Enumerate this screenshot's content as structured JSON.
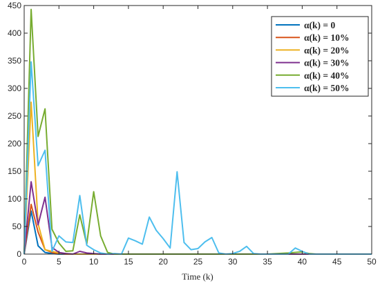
{
  "chart_data": {
    "type": "line",
    "xlabel": "Time (k)",
    "xlim": [
      0,
      50
    ],
    "ylim": [
      0,
      450
    ],
    "xticks": [
      0,
      5,
      10,
      15,
      20,
      25,
      30,
      35,
      40,
      45,
      50
    ],
    "yticks": [
      0,
      50,
      100,
      150,
      200,
      250,
      300,
      350,
      400,
      450
    ],
    "grid": false,
    "legend_position": "top-right",
    "series": [
      {
        "name": "α(k) = 0",
        "color": "#0072BD",
        "points": [
          [
            0,
            0
          ],
          [
            1,
            78
          ],
          [
            2,
            15
          ],
          [
            3,
            3
          ],
          [
            4,
            1
          ],
          [
            5,
            0
          ],
          [
            50,
            0
          ]
        ]
      },
      {
        "name": "α(k) = 10%",
        "color": "#D95319",
        "points": [
          [
            0,
            0
          ],
          [
            1,
            90
          ],
          [
            2,
            40
          ],
          [
            3,
            8
          ],
          [
            4,
            3
          ],
          [
            5,
            1
          ],
          [
            6,
            0
          ],
          [
            50,
            0
          ]
        ]
      },
      {
        "name": "α(k) = 20%",
        "color": "#EDB120",
        "points": [
          [
            0,
            0
          ],
          [
            1,
            275
          ],
          [
            2,
            55
          ],
          [
            3,
            8
          ],
          [
            4,
            5
          ],
          [
            5,
            2
          ],
          [
            6,
            1
          ],
          [
            7,
            0
          ],
          [
            50,
            0
          ]
        ]
      },
      {
        "name": "α(k) = 30%",
        "color": "#7E2F8E",
        "points": [
          [
            0,
            0
          ],
          [
            1,
            131
          ],
          [
            2,
            53
          ],
          [
            3,
            103
          ],
          [
            4,
            12
          ],
          [
            5,
            3
          ],
          [
            6,
            1
          ],
          [
            7,
            0
          ],
          [
            8,
            5
          ],
          [
            9,
            2
          ],
          [
            10,
            1
          ],
          [
            11,
            0
          ],
          [
            50,
            0
          ]
        ]
      },
      {
        "name": "α(k) = 40%",
        "color": "#77AC30",
        "points": [
          [
            0,
            0
          ],
          [
            1,
            443
          ],
          [
            2,
            213
          ],
          [
            3,
            263
          ],
          [
            4,
            45
          ],
          [
            5,
            20
          ],
          [
            6,
            5
          ],
          [
            7,
            6
          ],
          [
            8,
            71
          ],
          [
            9,
            18
          ],
          [
            10,
            113
          ],
          [
            11,
            33
          ],
          [
            12,
            3
          ],
          [
            13,
            0
          ],
          [
            35,
            0
          ],
          [
            38,
            2
          ],
          [
            40,
            4
          ],
          [
            41,
            1
          ],
          [
            42,
            0
          ],
          [
            50,
            0
          ]
        ]
      },
      {
        "name": "α(k) = 50%",
        "color": "#4DBEEE",
        "points": [
          [
            0,
            0
          ],
          [
            1,
            348
          ],
          [
            2,
            160
          ],
          [
            3,
            188
          ],
          [
            4,
            5
          ],
          [
            5,
            33
          ],
          [
            6,
            22
          ],
          [
            7,
            21
          ],
          [
            8,
            106
          ],
          [
            9,
            16
          ],
          [
            10,
            8
          ],
          [
            11,
            2
          ],
          [
            12,
            0
          ],
          [
            13,
            1
          ],
          [
            14,
            0
          ],
          [
            15,
            29
          ],
          [
            16,
            24
          ],
          [
            17,
            18
          ],
          [
            18,
            67
          ],
          [
            19,
            43
          ],
          [
            20,
            28
          ],
          [
            21,
            11
          ],
          [
            22,
            149
          ],
          [
            23,
            21
          ],
          [
            24,
            8
          ],
          [
            25,
            10
          ],
          [
            26,
            22
          ],
          [
            27,
            30
          ],
          [
            28,
            2
          ],
          [
            29,
            0
          ],
          [
            30,
            1
          ],
          [
            31,
            5
          ],
          [
            32,
            14
          ],
          [
            33,
            1
          ],
          [
            34,
            0
          ],
          [
            37,
            0
          ],
          [
            38,
            0
          ],
          [
            39,
            11
          ],
          [
            40,
            5
          ],
          [
            41,
            0
          ],
          [
            50,
            0
          ]
        ]
      }
    ]
  }
}
